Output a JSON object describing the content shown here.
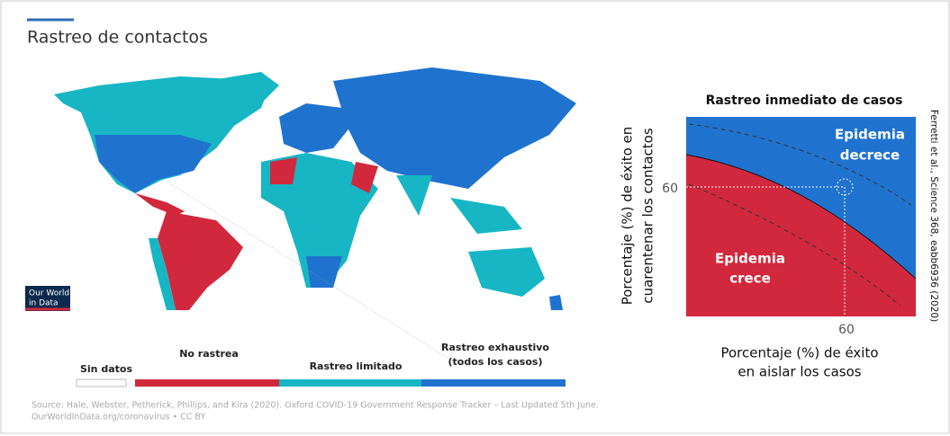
{
  "title": "Rastreo de contactos",
  "logo": [
    "Our World",
    "in Data"
  ],
  "legend": {
    "items": [
      {
        "label": [
          "Sin datos"
        ],
        "color": "#ffffff"
      },
      {
        "label": [
          "No rastrea"
        ],
        "color": "#d2283d"
      },
      {
        "label": [
          "Rastreo limitado"
        ],
        "color": "#17b6c4"
      },
      {
        "label": [
          "Rastreo exhaustivo",
          "(todos los casos)"
        ],
        "color": "#1f73cf"
      }
    ]
  },
  "source": [
    "Source: Hale, Webster, Petherick, Phillips, and Kira (2020). Oxford COVID-19 Government Response Tracker – Last Updated 5th June.",
    "OurWorldInData.org/coronavirus • CC BY"
  ],
  "diagram": {
    "title": "Rastreo inmediato de casos",
    "y_label": [
      "Porcentaje (%) de éxito en",
      "cuarentenar los contactos"
    ],
    "x_label": [
      "Porcentaje (%) de éxito",
      "en aislar los casos"
    ],
    "y_tick": "60",
    "x_tick": "60",
    "upper_region": [
      "Epidemia",
      "decrece"
    ],
    "lower_region": [
      "Epidemia",
      "crece"
    ],
    "citation": "Ferretti et al., Science 368, eabb6936 (2020)"
  }
}
